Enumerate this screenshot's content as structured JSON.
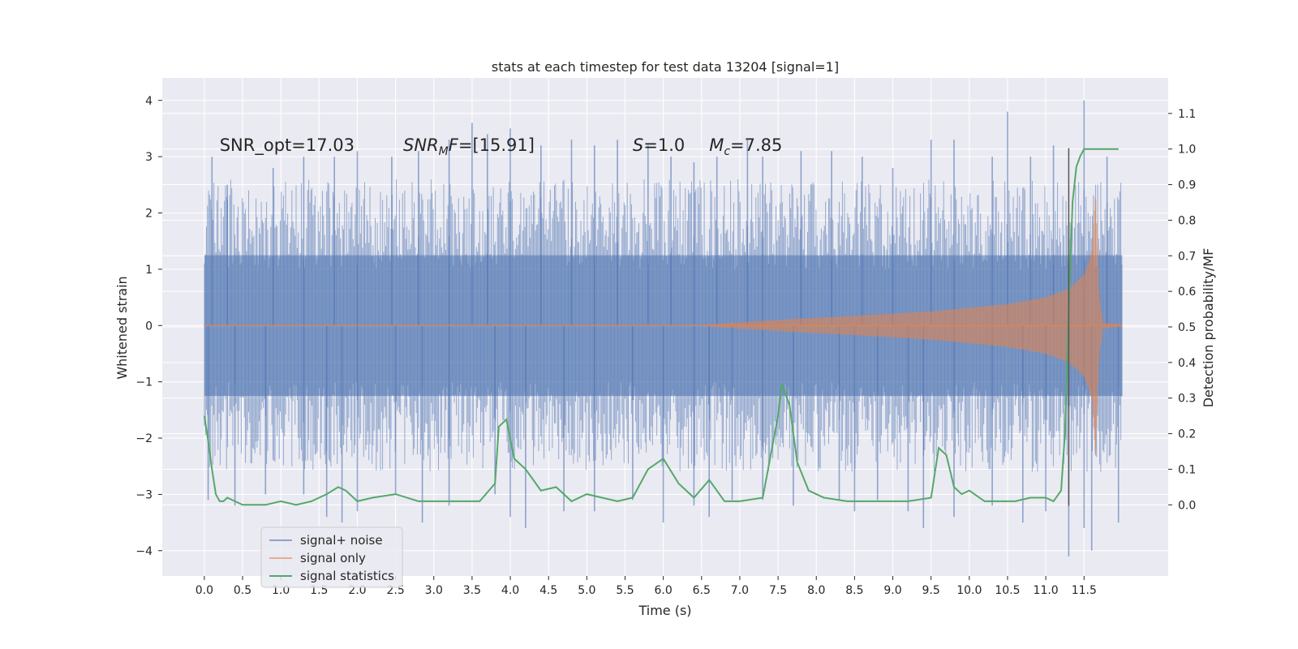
{
  "chart_data": {
    "type": "line",
    "title": "stats at each timestep for test data 13204 [signal=1]",
    "xlabel": "Time (s)",
    "ylabel": "Whitened strain",
    "y2label": "Detection probability/MF",
    "xlim": [
      -0.55,
      12.6
    ],
    "ylim": [
      -4.45,
      4.4
    ],
    "y2lim": [
      -0.2,
      1.2
    ],
    "xticks": [
      0.0,
      0.5,
      1.0,
      1.5,
      2.0,
      2.5,
      3.0,
      3.5,
      4.0,
      4.5,
      5.0,
      5.5,
      6.0,
      6.5,
      7.0,
      7.5,
      8.0,
      8.5,
      9.0,
      9.5,
      10.0,
      10.5,
      11.0,
      11.5
    ],
    "xtick_labels": [
      "0.0",
      "0.5",
      "1.0",
      "1.5",
      "2.0",
      "2.5",
      "3.0",
      "3.5",
      "4.0",
      "4.5",
      "5.0",
      "5.5",
      "6.0",
      "6.5",
      "7.0",
      "7.5",
      "8.0",
      "8.5",
      "9.0",
      "9.5",
      "10.0",
      "10.5",
      "11.0",
      "11.5"
    ],
    "yticks": [
      -4,
      -3,
      -2,
      -1,
      0,
      1,
      2,
      3,
      4
    ],
    "ytick_labels": [
      "−4",
      "−3",
      "−2",
      "−1",
      "0",
      "1",
      "2",
      "3",
      "4"
    ],
    "y2ticks": [
      0.0,
      0.1,
      0.2,
      0.3,
      0.4,
      0.5,
      0.6,
      0.7,
      0.8,
      0.9,
      1.0,
      1.1
    ],
    "y2tick_labels": [
      "0.0",
      "0.1",
      "0.2",
      "0.3",
      "0.4",
      "0.5",
      "0.6",
      "0.7",
      "0.8",
      "0.9",
      "1.0",
      "1.1"
    ],
    "grid": true,
    "legend_position": "lower-left",
    "annotations": [
      {
        "id": "snr-opt",
        "x": 0.2,
        "y": 3.1,
        "parts": [
          {
            "t": "SNR_opt=17.03",
            "style": "normal",
            "sub": false
          }
        ]
      },
      {
        "id": "snr-mf",
        "x": 2.6,
        "y": 3.1,
        "parts": [
          {
            "t": "SNR",
            "style": "italic",
            "sub": false
          },
          {
            "t": "M",
            "style": "italic",
            "sub": true
          },
          {
            "t": "F",
            "style": "italic",
            "sub": false
          },
          {
            "t": "=[15.91]",
            "style": "normal",
            "sub": false
          }
        ]
      },
      {
        "id": "s-value",
        "x": 5.6,
        "y": 3.1,
        "parts": [
          {
            "t": "S",
            "style": "italic",
            "sub": false
          },
          {
            "t": "=1.0",
            "style": "normal",
            "sub": false
          }
        ]
      },
      {
        "id": "mc-value",
        "x": 6.6,
        "y": 3.1,
        "parts": [
          {
            "t": "M",
            "style": "italic",
            "sub": false
          },
          {
            "t": "c",
            "style": "italic",
            "sub": true
          },
          {
            "t": "=7.85",
            "style": "normal",
            "sub": false
          }
        ]
      }
    ],
    "series": [
      {
        "name": "signal+ noise",
        "color": "#4c72b0",
        "axis": "left",
        "render": "dense-noise",
        "x_range": [
          0.0,
          12.0
        ],
        "envelope": {
          "upper": 1.25,
          "lower": -1.25
        },
        "peaks_upper": [
          [
            0.1,
            3.0
          ],
          [
            0.3,
            2.5
          ],
          [
            0.9,
            2.8
          ],
          [
            1.3,
            3.0
          ],
          [
            1.7,
            3.0
          ],
          [
            2.0,
            3.1
          ],
          [
            2.45,
            3.0
          ],
          [
            2.8,
            3.1
          ],
          [
            3.2,
            3.3
          ],
          [
            3.5,
            3.6
          ],
          [
            3.7,
            3.4
          ],
          [
            4.0,
            3.5
          ],
          [
            4.4,
            3.2
          ],
          [
            4.8,
            3.3
          ],
          [
            5.1,
            3.2
          ],
          [
            5.4,
            3.3
          ],
          [
            5.8,
            3.2
          ],
          [
            6.1,
            3.0
          ],
          [
            6.4,
            2.9
          ],
          [
            6.7,
            3.0
          ],
          [
            7.1,
            3.3
          ],
          [
            7.3,
            3.0
          ],
          [
            7.8,
            3.1
          ],
          [
            8.2,
            3.1
          ],
          [
            8.6,
            3.0
          ],
          [
            9.0,
            2.8
          ],
          [
            9.5,
            3.3
          ],
          [
            9.8,
            3.3
          ],
          [
            10.3,
            3.0
          ],
          [
            10.5,
            3.8
          ],
          [
            10.8,
            3.0
          ],
          [
            11.1,
            3.2
          ],
          [
            11.5,
            4.0
          ],
          [
            11.8,
            3.0
          ]
        ],
        "peaks_lower": [
          [
            0.05,
            -3.1
          ],
          [
            0.4,
            -3.2
          ],
          [
            0.8,
            -3.0
          ],
          [
            1.3,
            -3.0
          ],
          [
            1.6,
            -3.4
          ],
          [
            1.8,
            -3.5
          ],
          [
            2.0,
            -3.3
          ],
          [
            2.5,
            -3.0
          ],
          [
            2.85,
            -3.5
          ],
          [
            3.2,
            -3.2
          ],
          [
            3.8,
            -3.0
          ],
          [
            4.0,
            -3.4
          ],
          [
            4.2,
            -3.6
          ],
          [
            4.7,
            -3.3
          ],
          [
            5.1,
            -3.3
          ],
          [
            5.6,
            -3.1
          ],
          [
            6.0,
            -3.5
          ],
          [
            6.4,
            -3.2
          ],
          [
            6.6,
            -3.4
          ],
          [
            6.9,
            -3.1
          ],
          [
            7.3,
            -3.1
          ],
          [
            7.7,
            -3.2
          ],
          [
            8.3,
            -3.1
          ],
          [
            8.5,
            -3.3
          ],
          [
            8.8,
            -3.1
          ],
          [
            9.2,
            -3.3
          ],
          [
            9.4,
            -3.6
          ],
          [
            9.8,
            -3.4
          ],
          [
            10.3,
            -3.2
          ],
          [
            10.7,
            -3.5
          ],
          [
            11.0,
            -3.3
          ],
          [
            11.3,
            -4.1
          ],
          [
            11.5,
            -3.6
          ],
          [
            11.6,
            -4.0
          ],
          [
            11.95,
            -3.5
          ]
        ]
      },
      {
        "name": "signal only",
        "color": "#dd8452",
        "axis": "left",
        "render": "chirp",
        "x_range": [
          0.0,
          12.0
        ],
        "amplitude_points": [
          [
            0.0,
            0.01
          ],
          [
            6.5,
            0.01
          ],
          [
            7.5,
            0.1
          ],
          [
            8.5,
            0.17
          ],
          [
            9.5,
            0.25
          ],
          [
            10.5,
            0.38
          ],
          [
            11.0,
            0.5
          ],
          [
            11.3,
            0.65
          ],
          [
            11.5,
            0.9
          ],
          [
            11.6,
            1.3
          ],
          [
            11.65,
            2.4
          ],
          [
            11.7,
            0.5
          ],
          [
            11.75,
            0.05
          ],
          [
            12.0,
            0.02
          ]
        ]
      },
      {
        "name": "signal statistics",
        "color": "#55a868",
        "axis": "right",
        "render": "line",
        "x": [
          0.0,
          0.05,
          0.1,
          0.15,
          0.2,
          0.25,
          0.3,
          0.4,
          0.5,
          0.6,
          0.8,
          1.0,
          1.2,
          1.4,
          1.6,
          1.75,
          1.85,
          2.0,
          2.2,
          2.5,
          2.8,
          3.2,
          3.6,
          3.8,
          3.85,
          3.95,
          4.05,
          4.2,
          4.4,
          4.6,
          4.8,
          5.0,
          5.2,
          5.4,
          5.6,
          5.8,
          6.0,
          6.2,
          6.4,
          6.6,
          6.8,
          7.0,
          7.3,
          7.5,
          7.55,
          7.65,
          7.75,
          7.9,
          8.1,
          8.4,
          8.8,
          9.2,
          9.5,
          9.6,
          9.7,
          9.8,
          9.9,
          10.0,
          10.2,
          10.4,
          10.6,
          10.8,
          11.0,
          11.1,
          11.2,
          11.25,
          11.3,
          11.35,
          11.4,
          11.45,
          11.5,
          11.6,
          11.8,
          11.95
        ],
        "values": [
          0.25,
          0.18,
          0.1,
          0.03,
          0.01,
          0.01,
          0.02,
          0.01,
          0.0,
          0.0,
          0.0,
          0.01,
          0.0,
          0.01,
          0.03,
          0.05,
          0.04,
          0.01,
          0.02,
          0.03,
          0.01,
          0.01,
          0.01,
          0.06,
          0.22,
          0.24,
          0.13,
          0.1,
          0.04,
          0.05,
          0.01,
          0.03,
          0.02,
          0.01,
          0.02,
          0.1,
          0.13,
          0.06,
          0.02,
          0.07,
          0.01,
          0.01,
          0.02,
          0.25,
          0.34,
          0.28,
          0.12,
          0.04,
          0.02,
          0.01,
          0.01,
          0.01,
          0.02,
          0.16,
          0.14,
          0.05,
          0.03,
          0.04,
          0.01,
          0.01,
          0.01,
          0.02,
          0.02,
          0.01,
          0.04,
          0.2,
          0.55,
          0.85,
          0.95,
          0.98,
          1.0,
          1.0,
          1.0,
          1.0
        ]
      }
    ],
    "vertical_lines": [
      {
        "x": 11.3,
        "y_from": -3.2,
        "y_to": 3.15,
        "color": "#555555"
      }
    ]
  }
}
